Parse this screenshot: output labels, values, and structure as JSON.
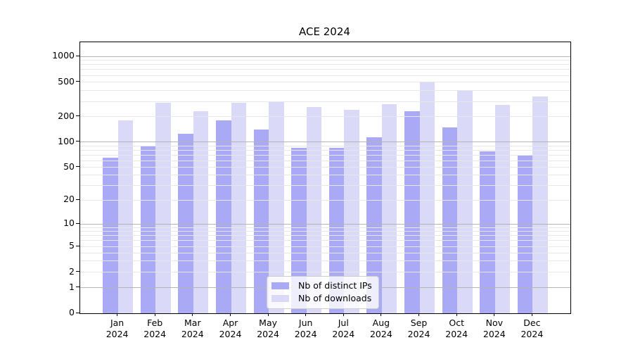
{
  "title": "ACE 2024",
  "chart_data": {
    "type": "bar",
    "title": "ACE 2024",
    "categories": [
      "Jan",
      "Feb",
      "Mar",
      "Apr",
      "May",
      "Jun",
      "Jul",
      "Aug",
      "Sep",
      "Oct",
      "Nov",
      "Dec"
    ],
    "year": "2024",
    "series": [
      {
        "name": "Nb of distinct IPs",
        "color": "#a9a9f6",
        "values": [
          65,
          90,
          125,
          180,
          140,
          85,
          85,
          113,
          230,
          150,
          78,
          70
        ]
      },
      {
        "name": "Nb of downloads",
        "color": "#dadaf8",
        "values": [
          180,
          290,
          230,
          290,
          300,
          260,
          240,
          280,
          500,
          400,
          275,
          345
        ]
      }
    ],
    "xlabel": "",
    "ylabel": "",
    "yscale": "symlog (log above 1, linear 0-1)",
    "yticks": [
      0,
      1,
      2,
      5,
      10,
      20,
      50,
      100,
      200,
      500,
      1000
    ],
    "ylim": [
      0,
      1450
    ],
    "grid": {
      "major_values": [
        1,
        10,
        100,
        1000
      ],
      "minor_values": [
        2,
        3,
        4,
        5,
        6,
        7,
        8,
        9,
        20,
        30,
        40,
        50,
        60,
        70,
        80,
        90,
        200,
        300,
        400,
        500,
        600,
        700,
        800,
        900
      ],
      "major_color": "#b4b4b4",
      "minor_color": "#e7e7e7"
    },
    "legend_position": "lower center",
    "axis_color": "#000000",
    "background_color": "#ffffff"
  }
}
